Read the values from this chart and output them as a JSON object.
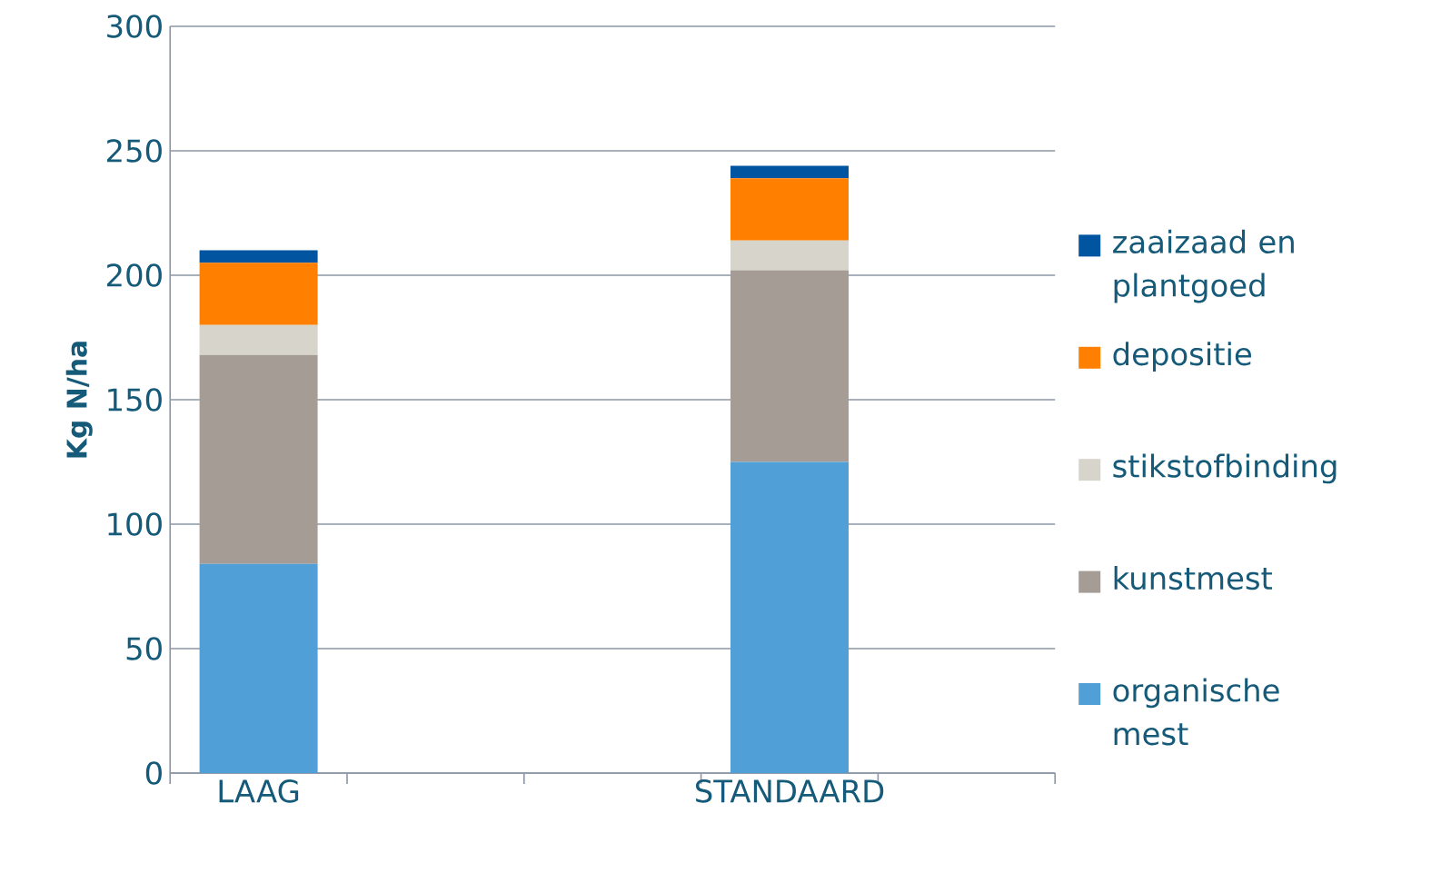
{
  "chart_data": {
    "type": "bar",
    "stacked": true,
    "ylabel": "Kg N/ha",
    "categories": [
      "LAAG",
      null,
      null,
      "STANDAARD",
      null
    ],
    "series": [
      {
        "name": "organische mest",
        "color": "#509fd6",
        "values": [
          84,
          null,
          null,
          125,
          null
        ]
      },
      {
        "name": "kunstmest",
        "color": "#a59d95",
        "values": [
          84,
          null,
          null,
          77,
          null
        ]
      },
      {
        "name": "stikstofbinding",
        "color": "#d7d4cb",
        "values": [
          12,
          null,
          null,
          12,
          null
        ]
      },
      {
        "name": "depositie",
        "color": "#ff7f00",
        "values": [
          25,
          null,
          null,
          25,
          null
        ]
      },
      {
        "name": "zaaizaad en plantgoed",
        "color": "#0054a0",
        "values": [
          5,
          null,
          null,
          5,
          null
        ]
      }
    ],
    "ylim": [
      0,
      300
    ],
    "yticks": [
      0,
      50,
      100,
      150,
      200,
      250,
      300
    ],
    "grid": "y",
    "legend": "right"
  }
}
